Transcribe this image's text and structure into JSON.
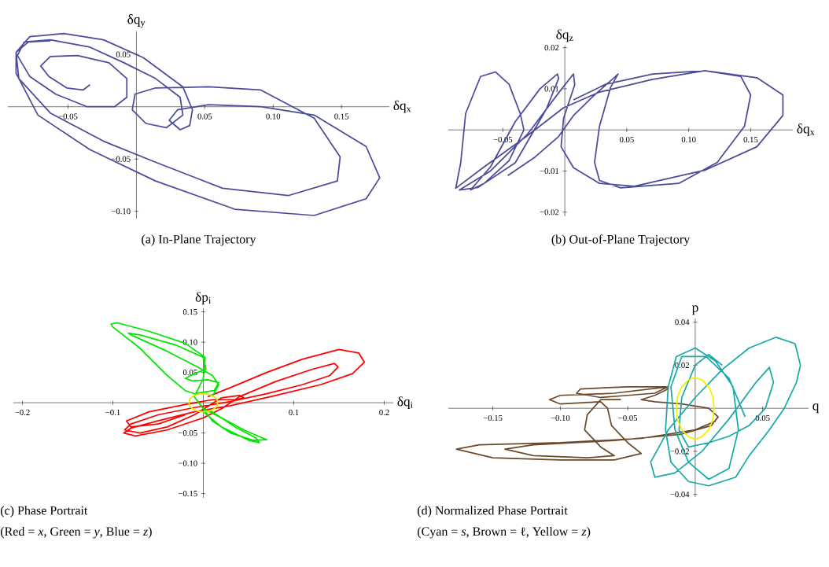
{
  "chart_data": [
    {
      "type": "line",
      "title": "(a) In-Plane Trajectory",
      "xlabel": "δq$_{x}$",
      "ylabel": "δq$_{y}$",
      "xlim": [
        -0.094,
        0.185
      ],
      "ylim": [
        -0.107,
        0.072
      ],
      "xticks": [
        {
          "value": -0.05,
          "label": "−0.05"
        },
        {
          "value": 0.05,
          "label": "0.05"
        },
        {
          "value": 0.1,
          "label": "0.10"
        },
        {
          "value": 0.15,
          "label": "0.15"
        }
      ],
      "yticks": [
        {
          "value": -0.1,
          "label": "−0.10"
        },
        {
          "value": -0.05,
          "label": "−0.05"
        },
        {
          "value": 0.05,
          "label": "0.05"
        }
      ],
      "series": [
        {
          "color": "#4b4b9b",
          "x": [
            -0.034,
            -0.039,
            -0.051,
            -0.064,
            -0.07,
            -0.063,
            -0.043,
            -0.02,
            -0.007,
            -0.007,
            -0.016,
            -0.036,
            -0.059,
            -0.078,
            -0.087,
            -0.082,
            -0.063,
            -0.034,
            -0.009,
            0.014,
            0.032,
            0.034,
            0.022,
            0.007,
            -0.003,
            -0.001,
            0.014,
            0.053,
            0.091,
            0.13,
            0.149,
            0.147,
            0.111,
            0.063,
            0.014,
            -0.024,
            -0.063,
            -0.086,
            -0.088,
            -0.078,
            -0.053,
            -0.024,
            0.005,
            0.034,
            0.041,
            0.039,
            0.032,
            0.024,
            0.03,
            0.053,
            0.091,
            0.13,
            0.168,
            0.178,
            0.168,
            0.13,
            0.072,
            0.014,
            -0.034,
            -0.072,
            -0.088,
            -0.088,
            -0.079,
            -0.063
          ],
          "values": [
            0.021,
            0.016,
            0.018,
            0.029,
            0.039,
            0.048,
            0.049,
            0.042,
            0.027,
            0.009,
            0.0,
            0.0,
            0.012,
            0.029,
            0.049,
            0.062,
            0.064,
            0.057,
            0.042,
            0.027,
            0.009,
            -0.008,
            -0.02,
            -0.016,
            -0.003,
            0.012,
            0.018,
            0.019,
            0.016,
            -0.011,
            -0.048,
            -0.071,
            -0.085,
            -0.078,
            -0.053,
            -0.033,
            -0.006,
            0.027,
            0.052,
            0.067,
            0.07,
            0.064,
            0.047,
            0.019,
            -0.003,
            -0.018,
            -0.022,
            -0.013,
            -0.003,
            0.002,
            0.0,
            -0.008,
            -0.038,
            -0.068,
            -0.088,
            -0.104,
            -0.098,
            -0.071,
            -0.041,
            -0.008,
            0.032,
            0.052,
            0.062,
            0.063
          ]
        }
      ]
    },
    {
      "type": "line",
      "title": "(b) Out-of-Plane Trajectory",
      "xlabel": "δq$_{x}$",
      "ylabel": "δq$_{z}$",
      "xlim": [
        -0.094,
        0.184
      ],
      "ylim": [
        -0.021,
        0.0205
      ],
      "xticks": [
        {
          "value": -0.05,
          "label": "−0.05"
        },
        {
          "value": 0.05,
          "label": "0.05"
        },
        {
          "value": 0.1,
          "label": "0.10"
        },
        {
          "value": 0.15,
          "label": "0.15"
        }
      ],
      "yticks": [
        {
          "value": -0.02,
          "label": "−0.02"
        },
        {
          "value": -0.01,
          "label": "−0.01"
        },
        {
          "value": 0.01,
          "label": "0.01"
        },
        {
          "value": 0.02,
          "label": "0.02"
        }
      ],
      "series": [
        {
          "color": "#4b4b9b",
          "x": [
            -0.046,
            -0.024,
            -0.005,
            0.007,
            0.024,
            0.041,
            0.043,
            0.037,
            0.028,
            0.024,
            0.028,
            0.045,
            0.092,
            0.123,
            0.145,
            0.15,
            0.142,
            0.113,
            0.071,
            0.028,
            -0.001,
            -0.031,
            -0.066,
            -0.088,
            -0.084,
            -0.08,
            -0.068,
            -0.056,
            -0.045,
            -0.036,
            -0.033,
            -0.045,
            -0.065,
            -0.076,
            -0.06,
            -0.04,
            -0.02,
            -0.006,
            -0.005,
            -0.015,
            -0.04,
            -0.07,
            -0.085,
            -0.06,
            -0.03,
            -0.005,
            0.007,
            0.008,
            -0.001,
            -0.003,
            0.007,
            0.028,
            0.056,
            0.113,
            0.155,
            0.176,
            0.176,
            0.155,
            0.113,
            0.071,
            0.033,
            0.007
          ],
          "values": [
            -0.0111,
            -0.0066,
            -0.0016,
            0.0035,
            0.0085,
            0.013,
            0.0136,
            0.0104,
            0.0009,
            -0.0079,
            -0.0123,
            -0.0141,
            -0.013,
            -0.0079,
            0.0009,
            0.0085,
            0.013,
            0.0144,
            0.0123,
            0.0092,
            0.0054,
            -0.0016,
            -0.0092,
            -0.0142,
            -0.008,
            0.004,
            0.013,
            0.0141,
            0.0111,
            0.004,
            0.0,
            -0.0075,
            -0.013,
            -0.0146,
            -0.009,
            0.002,
            0.01,
            0.0136,
            0.0125,
            0.005,
            -0.008,
            -0.014,
            -0.0146,
            -0.01,
            -0.001,
            0.009,
            0.0136,
            0.011,
            0.0028,
            -0.0041,
            -0.0092,
            -0.013,
            -0.0137,
            -0.0098,
            -0.0041,
            0.0035,
            0.0085,
            0.0127,
            0.0144,
            0.0136,
            0.0111,
            0.0073
          ]
        }
      ]
    },
    {
      "type": "line",
      "title": "(c) Phase Portrait",
      "subtitle": "(Red = *x*, Green = *y*, Blue = *z*)",
      "xlabel": "δq$_{i}$",
      "ylabel": "δp$_{i}$",
      "xlim": [
        -0.21,
        0.21
      ],
      "ylim": [
        -0.157,
        0.156
      ],
      "xticks": [
        {
          "value": -0.2,
          "label": "−0.2"
        },
        {
          "value": -0.1,
          "label": "−0.1"
        },
        {
          "value": 0.1,
          "label": "0.1"
        },
        {
          "value": 0.2,
          "label": "0.2"
        }
      ],
      "yticks": [
        {
          "value": -0.15,
          "label": "−0.15"
        },
        {
          "value": -0.1,
          "label": "−0.10"
        },
        {
          "value": -0.05,
          "label": "−0.05"
        },
        {
          "value": 0.05,
          "label": "0.05"
        },
        {
          "value": 0.1,
          "label": "0.10"
        },
        {
          "value": 0.15,
          "label": "0.15"
        }
      ],
      "series": [
        {
          "color": "#ff0000",
          "x": [
            0.005,
            0.03,
            0.07,
            0.11,
            0.15,
            0.172,
            0.178,
            0.165,
            0.13,
            0.08,
            0.03,
            -0.01,
            -0.05,
            -0.08,
            -0.088,
            -0.075,
            -0.04,
            0.0,
            0.02,
            0.04,
            0.08,
            0.12,
            0.145,
            0.149,
            0.14,
            0.11,
            0.07,
            0.03,
            -0.01,
            -0.05,
            -0.08,
            -0.087,
            -0.07,
            -0.04,
            -0.01,
            0.02,
            0.04,
            0.045,
            0.035,
            0.01,
            -0.02,
            -0.06,
            -0.085,
            -0.08,
            -0.05,
            -0.02
          ],
          "values": [
            0.01,
            0.025,
            0.05,
            0.072,
            0.088,
            0.082,
            0.067,
            0.048,
            0.03,
            0.012,
            -0.005,
            -0.015,
            -0.03,
            -0.042,
            -0.05,
            -0.055,
            -0.045,
            -0.025,
            -0.01,
            0.01,
            0.035,
            0.055,
            0.065,
            0.059,
            0.045,
            0.03,
            0.015,
            0.002,
            -0.008,
            -0.02,
            -0.035,
            -0.045,
            -0.05,
            -0.04,
            -0.02,
            0.008,
            0.012,
            0.008,
            0.005,
            0.005,
            -0.003,
            -0.015,
            -0.03,
            -0.04,
            -0.035,
            -0.02
          ]
        },
        {
          "color": "#00e600",
          "x": [
            0.01,
            0.017,
            0.01,
            -0.005,
            -0.04,
            -0.08,
            -0.083,
            -0.07,
            -0.03,
            0.0,
            0.003,
            -0.01,
            -0.02,
            -0.012,
            0.005,
            0.017,
            0.012,
            -0.01,
            -0.02,
            -0.04,
            -0.07,
            -0.1,
            -0.102,
            -0.095,
            -0.06,
            -0.02,
            0.002,
            0.0,
            -0.01,
            0.0,
            0.02,
            0.045,
            0.065,
            0.07,
            0.055,
            0.03,
            0.01,
            0.0,
            0.01,
            0.035,
            0.058,
            0.062,
            0.05,
            0.02,
            0.0
          ],
          "values": [
            0.01,
            0.03,
            0.045,
            0.058,
            0.085,
            0.112,
            0.115,
            0.112,
            0.095,
            0.075,
            0.055,
            0.048,
            0.04,
            0.036,
            0.038,
            0.033,
            0.02,
            0.015,
            0.02,
            0.045,
            0.09,
            0.125,
            0.13,
            0.132,
            0.118,
            0.098,
            0.075,
            0.04,
            0.01,
            -0.01,
            -0.025,
            -0.045,
            -0.058,
            -0.061,
            -0.062,
            -0.05,
            -0.03,
            -0.01,
            -0.015,
            -0.04,
            -0.058,
            -0.066,
            -0.062,
            -0.04,
            -0.015
          ]
        },
        {
          "color": "#e8e800",
          "x": [
            0.016,
            0.015,
            0.011,
            0.006,
            0.0,
            -0.006,
            -0.011,
            -0.015,
            -0.016,
            -0.015,
            -0.011,
            -0.006,
            0.0,
            0.006,
            0.011,
            0.015,
            0.016
          ],
          "values": [
            0.0,
            0.006,
            0.011,
            0.014,
            0.015,
            0.014,
            0.011,
            0.006,
            0.0,
            -0.006,
            -0.011,
            -0.014,
            -0.015,
            -0.014,
            -0.011,
            -0.006,
            0.001
          ]
        }
      ]
    },
    {
      "type": "line",
      "title": "(d) Normalized Phase Portrait",
      "subtitle": "(Cyan = *s*, Brown = ℓ, Yellow = *z*)",
      "xlabel": "q",
      "ylabel": "p",
      "xlim": [
        -0.183,
        0.084
      ],
      "ylim": [
        -0.0412,
        0.0417
      ],
      "xticks": [
        {
          "value": -0.15,
          "label": "−0.15"
        },
        {
          "value": -0.1,
          "label": "−0.10"
        },
        {
          "value": -0.05,
          "label": "−0.05"
        },
        {
          "value": 0.05,
          "label": "0.05"
        }
      ],
      "yticks": [
        {
          "value": -0.04,
          "label": "−0.04"
        },
        {
          "value": -0.02,
          "label": "−0.02"
        },
        {
          "value": 0.02,
          "label": "0.02"
        },
        {
          "value": 0.04,
          "label": "0.04"
        }
      ],
      "series": [
        {
          "color": "#6b4a2b",
          "x": [
            -0.055,
            -0.07,
            -0.08,
            -0.082,
            -0.07,
            -0.06,
            -0.08,
            -0.12,
            -0.141,
            -0.12,
            -0.06,
            -0.01,
            0.012,
            0.017,
            0.01,
            -0.01,
            -0.03,
            -0.04,
            -0.03,
            -0.02,
            -0.022,
            -0.05,
            -0.085,
            -0.088,
            -0.07,
            -0.05,
            -0.03,
            -0.02,
            -0.06,
            -0.1,
            -0.108,
            -0.1,
            -0.07,
            -0.065,
            -0.062,
            -0.05,
            -0.04,
            -0.06,
            -0.1,
            -0.15,
            -0.177,
            -0.16,
            -0.1,
            -0.04,
            0.0,
            0.015
          ],
          "values": [
            0.004,
            0.004,
            -0.003,
            -0.01,
            -0.018,
            -0.022,
            -0.023,
            -0.022,
            -0.019,
            -0.017,
            -0.015,
            -0.012,
            -0.008,
            -0.004,
            0.0,
            0.002,
            0.003,
            0.004,
            0.006,
            0.009,
            0.01,
            0.01,
            0.009,
            0.007,
            0.005,
            0.006,
            0.007,
            0.01,
            0.007,
            0.006,
            0.004,
            0.002,
            0.003,
            0.0,
            -0.008,
            -0.016,
            -0.021,
            -0.024,
            -0.024,
            -0.023,
            -0.019,
            -0.017,
            -0.016,
            -0.014,
            -0.01,
            -0.006
          ]
        },
        {
          "color": "#1aa8a8",
          "x": [
            0.037,
            0.025,
            0.008,
            -0.01,
            -0.018,
            -0.015,
            -0.005,
            0.01,
            0.025,
            0.032,
            0.028,
            0.015,
            0.0,
            -0.014,
            -0.02,
            -0.022,
            -0.018,
            -0.005,
            0.01,
            0.03,
            0.04,
            0.055,
            0.066,
            0.075,
            0.078,
            0.074,
            0.06,
            0.04,
            0.02,
            0.0,
            -0.02,
            -0.033,
            -0.03,
            -0.015,
            0.005,
            0.025,
            0.045,
            0.055,
            0.058,
            0.052,
            0.04,
            0.025,
            0.01,
            -0.005,
            -0.012,
            -0.01,
            0.0,
            0.01,
            0.02
          ],
          "values": [
            -0.004,
            0.014,
            0.024,
            0.024,
            0.01,
            -0.01,
            -0.025,
            -0.033,
            -0.028,
            -0.01,
            0.01,
            0.022,
            0.028,
            0.024,
            0.01,
            -0.01,
            -0.025,
            -0.034,
            -0.036,
            -0.032,
            -0.022,
            -0.01,
            0.0,
            0.012,
            0.02,
            0.03,
            0.033,
            0.028,
            0.018,
            0.005,
            -0.01,
            -0.025,
            -0.032,
            -0.03,
            -0.02,
            -0.005,
            0.012,
            0.019,
            0.012,
            0.0,
            -0.008,
            -0.013,
            -0.016,
            -0.018,
            -0.01,
            0.005,
            0.02,
            0.025,
            0.02
          ]
        },
        {
          "color": "#f0f000",
          "x": [
            0.014,
            0.013,
            0.01,
            0.005,
            0.0,
            -0.005,
            -0.01,
            -0.013,
            -0.014,
            -0.013,
            -0.01,
            -0.005,
            0.0,
            0.005,
            0.01,
            0.013,
            0.014
          ],
          "values": [
            0.0,
            0.0055,
            0.01,
            0.0132,
            0.0143,
            0.0132,
            0.01,
            0.0055,
            0.0,
            -0.0055,
            -0.01,
            -0.0132,
            -0.0144,
            -0.0132,
            -0.01,
            -0.0055,
            0.0005
          ]
        }
      ]
    }
  ]
}
